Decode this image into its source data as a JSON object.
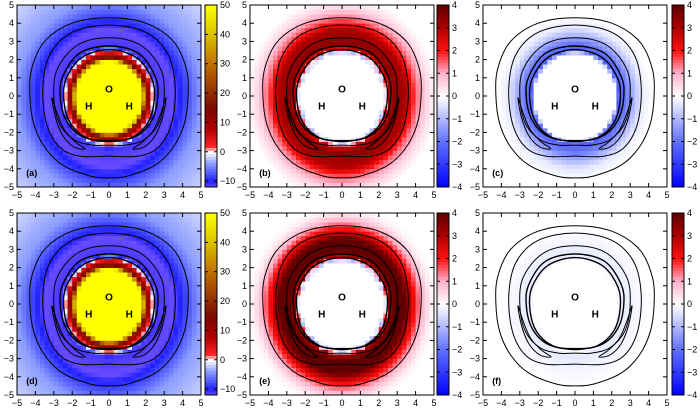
{
  "chart_data": [
    {
      "id": "a",
      "type": "heatmap",
      "panel_label": "(a)",
      "xlim": [
        -5,
        5
      ],
      "ylim": [
        -5,
        5
      ],
      "xticks": [
        "−5",
        "−4",
        "−3",
        "−2",
        "−1",
        "0",
        "1",
        "2",
        "3",
        "4",
        "5"
      ],
      "yticks": [
        "5",
        "4",
        "3",
        "2",
        "1",
        "0",
        "−1",
        "−2",
        "−3",
        "−4",
        "−5"
      ],
      "colorbar": {
        "range": [
          -12,
          50
        ],
        "ticks": [
          "50",
          "40",
          "30",
          "20",
          "10",
          "0",
          "−10"
        ],
        "tick_values": [
          50,
          40,
          30,
          20,
          10,
          0,
          -10
        ],
        "stops": [
          [
            -12,
            "#6a4cff"
          ],
          [
            -10,
            "#2020ff"
          ],
          [
            -4,
            "#8a9cff"
          ],
          [
            0,
            "#ffffff"
          ],
          [
            2,
            "#ff2020"
          ],
          [
            8,
            "#b00000"
          ],
          [
            15,
            "#7a0a00"
          ],
          [
            30,
            "#c07000"
          ],
          [
            42,
            "#e0d000"
          ],
          [
            50,
            "#ffff00"
          ]
        ]
      },
      "radial_profile": [
        [
          0,
          50
        ],
        [
          1.8,
          50
        ],
        [
          2.0,
          18
        ],
        [
          2.2,
          8
        ],
        [
          2.4,
          0
        ],
        [
          2.6,
          -11
        ],
        [
          3.5,
          -12
        ],
        [
          4.2,
          -8
        ],
        [
          5,
          -4
        ],
        [
          7,
          -1.5
        ]
      ],
      "atoms": [
        "O",
        "H",
        "H"
      ]
    },
    {
      "id": "b",
      "type": "heatmap",
      "panel_label": "(b)",
      "xlim": [
        -5,
        5
      ],
      "ylim": [
        -5,
        5
      ],
      "xticks": [
        "−5",
        "−4",
        "−3",
        "−2",
        "−1",
        "0",
        "1",
        "2",
        "3",
        "4",
        "5"
      ],
      "yticks": [
        "5",
        "4",
        "3",
        "2",
        "1",
        "0",
        "−1",
        "−2",
        "−3",
        "−4",
        "−5"
      ],
      "colorbar": {
        "range": [
          -4,
          4
        ],
        "ticks": [
          "4",
          "3",
          "2",
          "1",
          "0",
          "−1",
          "−2",
          "−3",
          "−4"
        ],
        "tick_values": [
          4,
          3,
          2,
          1,
          0,
          -1,
          -2,
          -3,
          -4
        ],
        "stops": [
          [
            -4,
            "#0000ff"
          ],
          [
            -2,
            "#6070ff"
          ],
          [
            0,
            "#ffffff"
          ],
          [
            1,
            "#ffb0c8"
          ],
          [
            2,
            "#ff1010"
          ],
          [
            3,
            "#b00000"
          ],
          [
            4,
            "#600000"
          ]
        ]
      },
      "radial_profile": [
        [
          0,
          0
        ],
        [
          2.2,
          0
        ],
        [
          2.35,
          -1
        ],
        [
          2.5,
          2.5
        ],
        [
          2.8,
          3.5
        ],
        [
          3.5,
          3
        ],
        [
          4.0,
          1.5
        ],
        [
          4.6,
          0.5
        ],
        [
          5.2,
          0
        ]
      ],
      "atoms": [
        "O",
        "H",
        "H"
      ]
    },
    {
      "id": "c",
      "type": "heatmap",
      "panel_label": "(c)",
      "xlim": [
        -5,
        5
      ],
      "ylim": [
        -5,
        5
      ],
      "xticks": [
        "−5",
        "−4",
        "−3",
        "−2",
        "−1",
        "0",
        "1",
        "2",
        "3",
        "4",
        "5"
      ],
      "yticks": [
        "5",
        "4",
        "3",
        "2",
        "1",
        "0",
        "−1",
        "−2",
        "−3",
        "−4",
        "−5"
      ],
      "colorbar": {
        "range": [
          -4,
          4
        ],
        "ticks": [
          "4",
          "3",
          "2",
          "1",
          "0",
          "−1",
          "−2",
          "−3",
          "−4"
        ],
        "tick_values": [
          4,
          3,
          2,
          1,
          0,
          -1,
          -2,
          -3,
          -4
        ],
        "stops": [
          [
            -4,
            "#0000ff"
          ],
          [
            -2,
            "#6070ff"
          ],
          [
            0,
            "#ffffff"
          ],
          [
            1,
            "#ffb0c8"
          ],
          [
            2,
            "#ff1010"
          ],
          [
            3,
            "#b00000"
          ],
          [
            4,
            "#600000"
          ]
        ]
      },
      "radial_profile": [
        [
          0,
          0
        ],
        [
          2.2,
          0
        ],
        [
          2.4,
          -2.3
        ],
        [
          2.8,
          -1.8
        ],
        [
          3.2,
          -1
        ],
        [
          3.6,
          -0.3
        ],
        [
          4.2,
          0
        ]
      ],
      "atoms": [
        "O",
        "H",
        "H"
      ]
    },
    {
      "id": "d",
      "type": "heatmap",
      "panel_label": "(d)",
      "xlim": [
        -5,
        5
      ],
      "ylim": [
        -5,
        5
      ],
      "xticks": [
        "−5",
        "−4",
        "−3",
        "−2",
        "−1",
        "0",
        "1",
        "2",
        "3",
        "4",
        "5"
      ],
      "yticks": [
        "5",
        "4",
        "3",
        "2",
        "1",
        "0",
        "−1",
        "−2",
        "−3",
        "−4",
        "−5"
      ],
      "colorbar": {
        "range": [
          -12,
          50
        ],
        "ticks": [
          "50",
          "40",
          "30",
          "20",
          "10",
          "0",
          "−10"
        ],
        "tick_values": [
          50,
          40,
          30,
          20,
          10,
          0,
          -10
        ],
        "stops": [
          [
            -12,
            "#6a4cff"
          ],
          [
            -10,
            "#2020ff"
          ],
          [
            -4,
            "#8a9cff"
          ],
          [
            0,
            "#ffffff"
          ],
          [
            2,
            "#ff2020"
          ],
          [
            8,
            "#b00000"
          ],
          [
            15,
            "#7a0a00"
          ],
          [
            30,
            "#c07000"
          ],
          [
            42,
            "#e0d000"
          ],
          [
            50,
            "#ffff00"
          ]
        ]
      },
      "radial_profile": [
        [
          0,
          50
        ],
        [
          1.8,
          50
        ],
        [
          2.0,
          18
        ],
        [
          2.2,
          8
        ],
        [
          2.4,
          0
        ],
        [
          2.6,
          -11
        ],
        [
          3.5,
          -12
        ],
        [
          4.2,
          -8
        ],
        [
          5,
          -4
        ],
        [
          7,
          -1.5
        ]
      ],
      "atoms": [
        "O",
        "H",
        "H"
      ]
    },
    {
      "id": "e",
      "type": "heatmap",
      "panel_label": "(e)",
      "xlim": [
        -5,
        5
      ],
      "ylim": [
        -5,
        5
      ],
      "xticks": [
        "−5",
        "−4",
        "−3",
        "−2",
        "−1",
        "0",
        "1",
        "2",
        "3",
        "4",
        "5"
      ],
      "yticks": [
        "5",
        "4",
        "3",
        "2",
        "1",
        "0",
        "−1",
        "−2",
        "−3",
        "−4",
        "−5"
      ],
      "colorbar": {
        "range": [
          -4,
          4
        ],
        "ticks": [
          "4",
          "3",
          "2",
          "1",
          "0",
          "−1",
          "−2",
          "−3",
          "−4"
        ],
        "tick_values": [
          4,
          3,
          2,
          1,
          0,
          -1,
          -2,
          -3,
          -4
        ],
        "stops": [
          [
            -4,
            "#0000ff"
          ],
          [
            -2,
            "#6070ff"
          ],
          [
            0,
            "#ffffff"
          ],
          [
            1,
            "#ffb0c8"
          ],
          [
            2,
            "#ff1010"
          ],
          [
            3,
            "#b00000"
          ],
          [
            4,
            "#600000"
          ]
        ]
      },
      "radial_profile": [
        [
          0,
          0
        ],
        [
          2.2,
          0
        ],
        [
          2.35,
          -1
        ],
        [
          2.5,
          3
        ],
        [
          2.8,
          4
        ],
        [
          3.4,
          4
        ],
        [
          3.8,
          2.5
        ],
        [
          4.3,
          1
        ],
        [
          4.8,
          0.2
        ],
        [
          5.2,
          0
        ]
      ],
      "atoms": [
        "O",
        "H",
        "H"
      ]
    },
    {
      "id": "f",
      "type": "heatmap",
      "panel_label": "(f)",
      "xlim": [
        -5,
        5
      ],
      "ylim": [
        -5,
        5
      ],
      "xticks": [
        "−5",
        "−4",
        "−3",
        "−2",
        "−1",
        "0",
        "1",
        "2",
        "3",
        "4",
        "5"
      ],
      "yticks": [
        "5",
        "4",
        "3",
        "2",
        "1",
        "0",
        "−1",
        "−2",
        "−3",
        "−4",
        "−5"
      ],
      "colorbar": {
        "range": [
          -4,
          4
        ],
        "ticks": [
          "4",
          "3",
          "2",
          "1",
          "0",
          "−1",
          "−2",
          "−3",
          "−4"
        ],
        "tick_values": [
          4,
          3,
          2,
          1,
          0,
          -1,
          -2,
          -3,
          -4
        ],
        "stops": [
          [
            -4,
            "#0000ff"
          ],
          [
            -2,
            "#6070ff"
          ],
          [
            0,
            "#ffffff"
          ],
          [
            1,
            "#ffb0c8"
          ],
          [
            2,
            "#ff1010"
          ],
          [
            3,
            "#b00000"
          ],
          [
            4,
            "#600000"
          ]
        ]
      },
      "radial_profile": [
        [
          0,
          0
        ],
        [
          2.3,
          0
        ],
        [
          2.6,
          -0.3
        ],
        [
          3.2,
          -0.15
        ],
        [
          4,
          0
        ]
      ],
      "atoms": [
        "O",
        "H",
        "H"
      ]
    }
  ]
}
